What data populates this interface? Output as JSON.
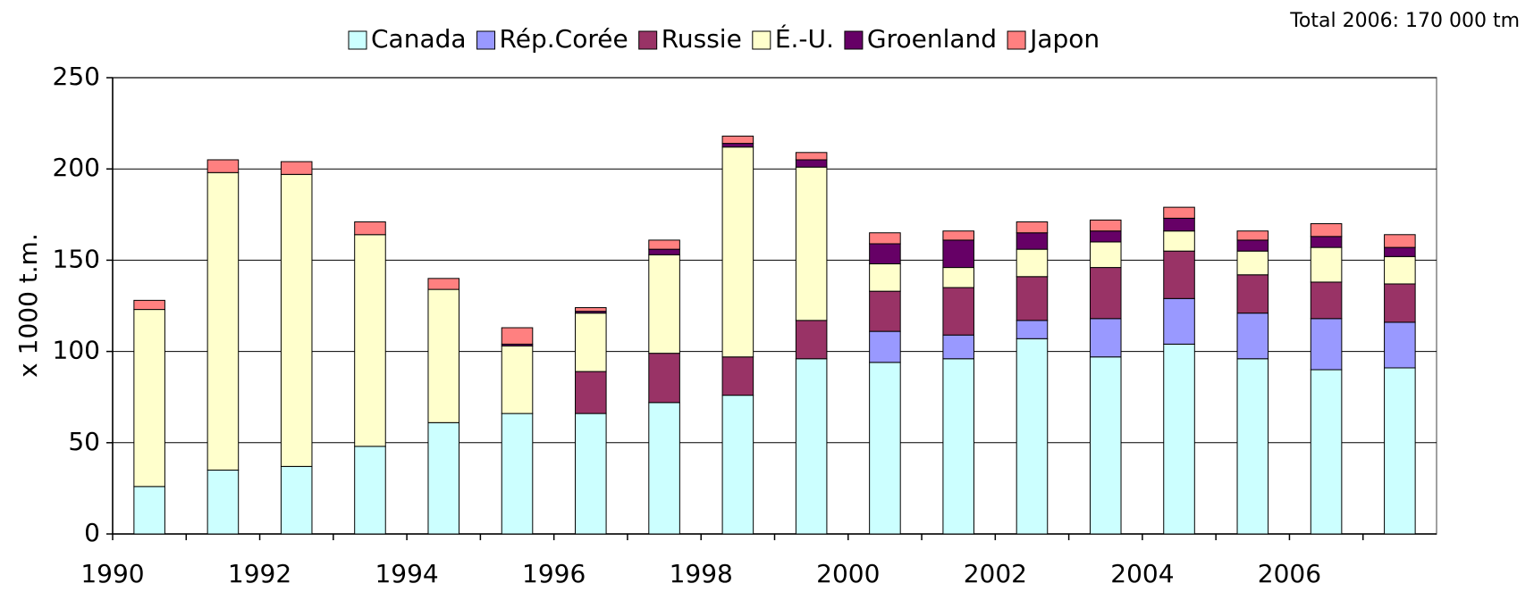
{
  "chart_data": {
    "type": "stacked_bar",
    "annotation": "Total 2006: 170 000 tm",
    "y_label": "x 1000 t.m.",
    "categories": [
      "1990",
      null,
      "1992",
      null,
      "1994",
      null,
      "1996",
      null,
      "1998",
      null,
      "2000",
      null,
      "2002",
      null,
      "2004",
      null,
      "2006",
      null
    ],
    "series": [
      {
        "name": "Canada",
        "color": "#ccffff",
        "values": [
          26,
          35,
          37,
          48,
          61,
          66,
          66,
          72,
          76,
          96,
          94,
          96,
          107,
          97,
          104,
          96,
          90,
          91
        ]
      },
      {
        "name": "Rép.Corée",
        "color": "#9999ff",
        "values": [
          0,
          0,
          0,
          0,
          0,
          0,
          0,
          0,
          0,
          0,
          17,
          13,
          10,
          21,
          25,
          25,
          28,
          25
        ]
      },
      {
        "name": "Russie",
        "color": "#993366",
        "values": [
          0,
          0,
          0,
          0,
          0,
          0,
          23,
          27,
          21,
          21,
          22,
          26,
          24,
          28,
          26,
          21,
          20,
          21
        ]
      },
      {
        "name": "É.-U.",
        "color": "#ffffcc",
        "values": [
          97,
          163,
          160,
          116,
          73,
          37,
          32,
          54,
          115,
          84,
          15,
          11,
          15,
          14,
          11,
          13,
          19,
          15
        ]
      },
      {
        "name": "Groenland",
        "color": "#660066",
        "values": [
          0,
          0,
          0,
          0,
          0,
          1,
          1,
          3,
          2,
          4,
          11,
          15,
          9,
          6,
          7,
          6,
          6,
          5
        ]
      },
      {
        "name": "Japon",
        "color": "#ff8080",
        "values": [
          5,
          7,
          7,
          7,
          6,
          9,
          2,
          5,
          4,
          4,
          6,
          5,
          6,
          6,
          6,
          5,
          7,
          7
        ]
      }
    ],
    "ylim": [
      0,
      250
    ],
    "yticks": [
      0,
      50,
      100,
      150,
      200,
      250
    ],
    "grid": true,
    "legend": "top"
  }
}
